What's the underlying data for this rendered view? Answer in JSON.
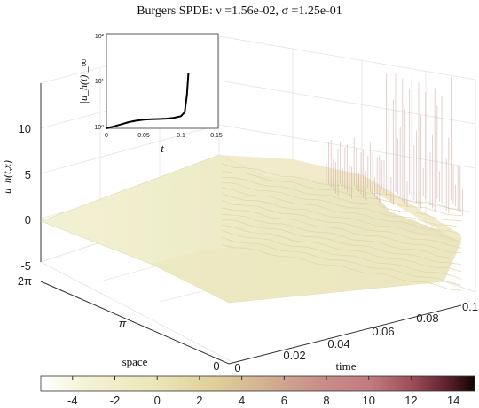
{
  "chart_data": [
    {
      "type": "surface",
      "title": "Burgers SPDE: ν =1.56e-02, σ =1.25e-01",
      "xlabel": "time",
      "ylabel": "space",
      "zlabel": "u_h(t,x)",
      "x_ticks": [
        "0",
        "0.02",
        "0.04",
        "0.06",
        "0.08",
        "0.1"
      ],
      "x_tick_values": [
        0,
        0.02,
        0.04,
        0.06,
        0.08,
        0.1
      ],
      "y_ticks": [
        "0",
        "π",
        "2π"
      ],
      "y_tick_values": [
        0,
        3.1416,
        6.2832
      ],
      "z_ticks": [
        "-5",
        "0",
        "5",
        "10"
      ],
      "z_tick_values": [
        -5,
        0,
        5,
        10
      ],
      "xlim": [
        0,
        0.11
      ],
      "ylim": [
        0,
        6.2832
      ],
      "zlim": [
        -5,
        15
      ],
      "grid": true,
      "colorbar": {
        "orientation": "horizontal",
        "placement": "bottom",
        "range": [
          -5.5,
          15
        ],
        "ticks": [
          "-4",
          "-2",
          "0",
          "2",
          "4",
          "6",
          "8",
          "10",
          "12",
          "14"
        ],
        "tick_values": [
          -4,
          -2,
          0,
          2,
          4,
          6,
          8,
          10,
          12,
          14
        ],
        "colors": [
          "#ffffff",
          "#f4f3d6",
          "#ebe7b8",
          "#e0cf9a",
          "#d2b090",
          "#c98f8a",
          "#c27b7f",
          "#9a4b57",
          "#5a1f2b",
          "#140404"
        ]
      }
    },
    {
      "type": "line",
      "placement": "inset",
      "xlabel": "t",
      "ylabel": "|u_h(t)|_∞",
      "yscale": "log",
      "x_ticks": [
        "0",
        "0.05",
        "0.1",
        "0.15"
      ],
      "y_ticks": [
        "10⁰",
        "10¹",
        "10²"
      ],
      "xlim": [
        0,
        0.15
      ],
      "ylim": [
        1,
        100
      ],
      "series": [
        {
          "x": [
            0,
            0.01,
            0.02,
            0.03,
            0.04,
            0.05,
            0.06,
            0.07,
            0.08,
            0.09,
            0.1,
            0.105,
            0.108,
            0.11
          ],
          "y": [
            1.0,
            1.1,
            1.22,
            1.35,
            1.45,
            1.52,
            1.55,
            1.57,
            1.6,
            1.66,
            1.8,
            2.2,
            5.0,
            14.5
          ]
        }
      ]
    }
  ]
}
